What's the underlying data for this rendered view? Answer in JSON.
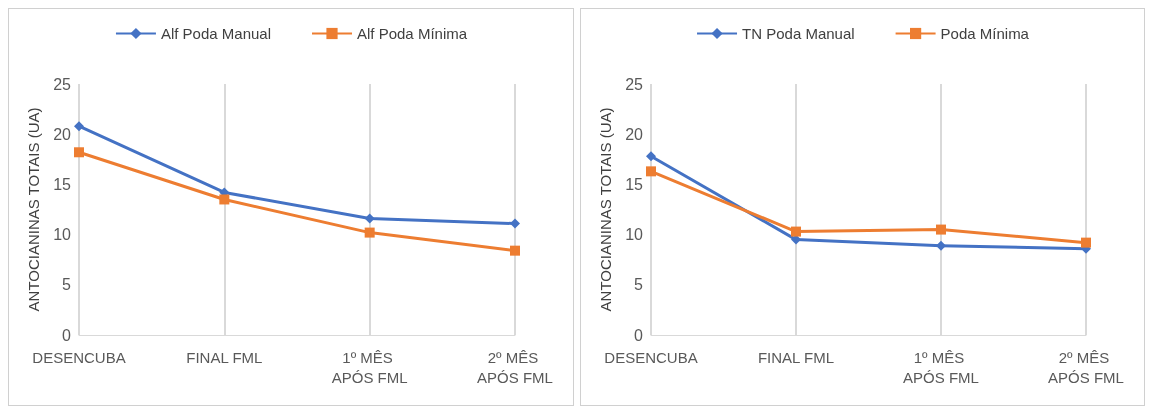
{
  "chart_data": [
    {
      "type": "line",
      "ylabel": "ANTOCIANINAS TOTAIS (UA)",
      "categories": [
        "DESENCUBA",
        "FINAL FML",
        "1º MÊS APÓS FML",
        "2º MÊS APÓS FML"
      ],
      "ylim": [
        0,
        25
      ],
      "yticks": [
        0,
        5,
        10,
        15,
        20,
        25
      ],
      "grid": "x",
      "legend": "top",
      "series": [
        {
          "name": "Alf Poda Manual",
          "color": "#4472c4",
          "marker": "diamond",
          "values": [
            20.8,
            14.2,
            11.6,
            11.1
          ]
        },
        {
          "name": "Alf Poda Mínima",
          "color": "#ed7d31",
          "marker": "square",
          "values": [
            18.2,
            13.5,
            10.2,
            8.4
          ]
        }
      ]
    },
    {
      "type": "line",
      "ylabel": "ANTOCIANINAS TOTAIS (UA)",
      "categories": [
        "DESENCUBA",
        "FINAL FML",
        "1º MÊS APÓS FML",
        "2º MÊS APÓS FML"
      ],
      "ylim": [
        0,
        25
      ],
      "yticks": [
        0,
        5,
        10,
        15,
        20,
        25
      ],
      "grid": "x",
      "legend": "top",
      "series": [
        {
          "name": "TN Poda Manual",
          "color": "#4472c4",
          "marker": "diamond",
          "values": [
            17.8,
            9.5,
            8.9,
            8.6
          ]
        },
        {
          "name": "Poda Mínima",
          "color": "#ed7d31",
          "marker": "square",
          "values": [
            16.3,
            10.3,
            10.5,
            9.2
          ]
        }
      ]
    }
  ]
}
